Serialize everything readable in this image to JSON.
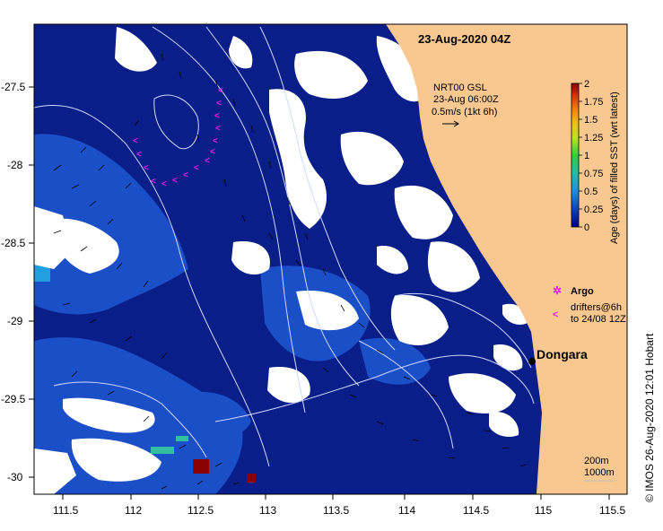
{
  "map": {
    "title": "23-Aug-2020 04Z",
    "credit": "© IMOS 26-Aug-2020 12:01 Hobart",
    "x_ticks": [
      "111.5",
      "112",
      "112.5",
      "113",
      "113.5",
      "114",
      "114.5",
      "115",
      "115.5"
    ],
    "y_ticks": [
      "-27.5",
      "-28",
      "-28.5",
      "-29",
      "-29.5",
      "-30"
    ],
    "current_legend": {
      "line1": "NRT00 GSL",
      "line2": "23-Aug 06:00Z",
      "line3": "0.5m/s (1kt 6h)"
    },
    "colorbar": {
      "label": "Age (days) of filled SST (wrt latest)",
      "ticks": [
        "2",
        "1.75",
        "1.5",
        "1.25",
        "1",
        "0.75",
        "0.5",
        "0.25",
        "0"
      ],
      "colors": [
        "#8b0000",
        "#c0392b",
        "#e06a10",
        "#f0a020",
        "#e8e020",
        "#80d030",
        "#20c080",
        "#2090e0",
        "#1040c0",
        "#000080"
      ]
    },
    "legend": {
      "argo": "Argo",
      "drifters_line1": "drifters@6h",
      "drifters_line2": "to 24/08 12Z"
    },
    "place": "Dongara",
    "depth_scale": {
      "line1": "200m",
      "line2": "1000m"
    },
    "colors": {
      "ocean_deep": "#0a1e8a",
      "ocean_mid": "#1a4fc8",
      "land": "#f8c890",
      "cloud": "#ffffff",
      "argo": "#e020e0"
    }
  }
}
